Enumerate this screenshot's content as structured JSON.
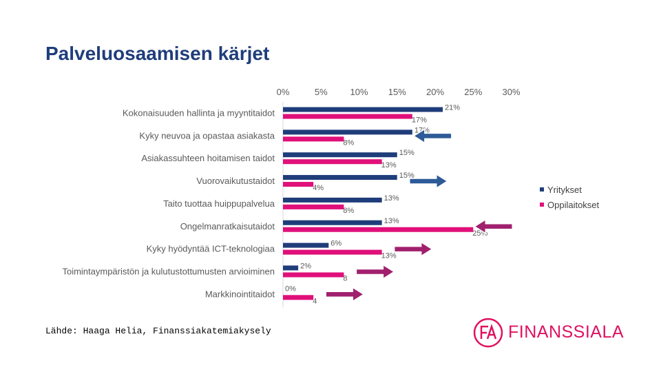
{
  "title": "Palveluosaamisen kärjet",
  "source": "Lähde: Haaga Helia, Finanssiakatemiakysely",
  "logo": {
    "mark": "FA",
    "text": "FINANSSIALA",
    "color": "#e0115f"
  },
  "colors": {
    "yritykset": "#1f3d7a",
    "oppilaitokset": "#e0107a",
    "arrow_blue": "#2e5a97",
    "arrow_pink": "#a0206e"
  },
  "chart_data": {
    "type": "bar",
    "orientation": "horizontal",
    "xlim": [
      0,
      30
    ],
    "x_ticks": [
      "0%",
      "5%",
      "10%",
      "15%",
      "20%",
      "25%",
      "30%"
    ],
    "legend_position": "right",
    "categories": [
      "Kokonaisuuden hallinta ja myyntitaidot",
      "Kyky neuvoa ja opastaa asiakasta",
      "Asiakassuhteen hoitamisen taidot",
      "Vuorovaikutustaidot",
      "Taito tuottaa huippupalvelua",
      "Ongelmanratkaisutaidot",
      "Kyky hyödyntää ICT-teknologiaa",
      "Toimintaympäristön ja kulutustottumusten arvioiminen",
      "Markkinointitaidot"
    ],
    "series": [
      {
        "name": "Yritykset",
        "color": "#1f3d7a",
        "values": [
          21,
          17,
          15,
          15,
          13,
          13,
          6,
          2,
          0
        ],
        "labels": [
          "21%",
          "17%",
          "15%",
          "15%",
          "13%",
          "13%",
          "6%",
          "2%",
          "0%"
        ]
      },
      {
        "name": "Oppilaitokset",
        "color": "#e0107a",
        "values": [
          17,
          8,
          13,
          4,
          8,
          25,
          13,
          8,
          4
        ],
        "labels": [
          "17%",
          "8%",
          "13%",
          "4%",
          "8%",
          "25%",
          "13%",
          "8",
          "4"
        ]
      }
    ],
    "arrows": [
      {
        "row": 1,
        "direction": "left",
        "color": "blue"
      },
      {
        "row": 3,
        "direction": "right",
        "color": "blue"
      },
      {
        "row": 5,
        "direction": "left",
        "color": "pink"
      },
      {
        "row": 6,
        "direction": "right",
        "color": "pink"
      },
      {
        "row": 7,
        "direction": "right",
        "color": "pink"
      },
      {
        "row": 8,
        "direction": "right",
        "color": "pink"
      }
    ]
  }
}
